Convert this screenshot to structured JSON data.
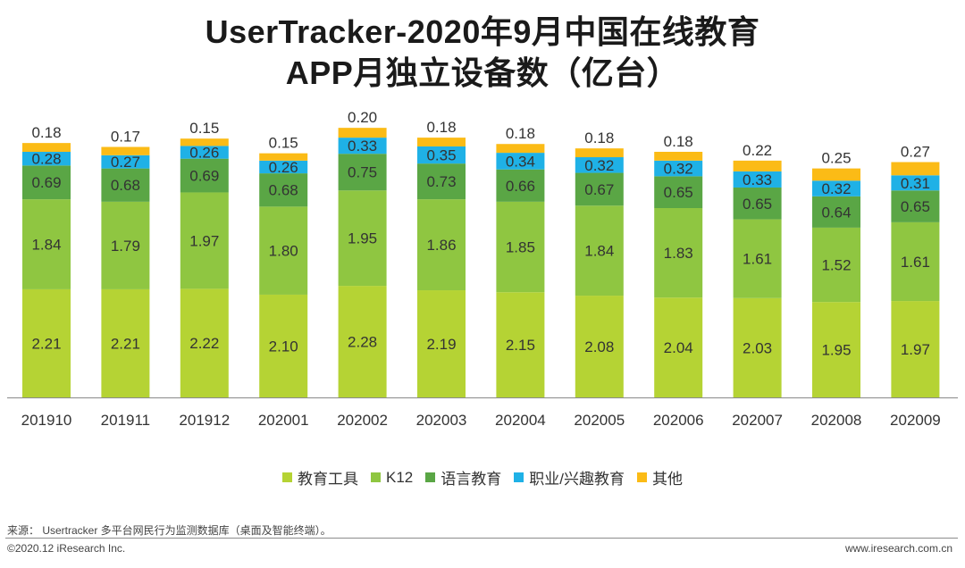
{
  "title_line1": "UserTracker-2020年9月中国在线教育",
  "title_line2": "APP月独立设备数（亿台）",
  "chart_data": {
    "type": "bar",
    "stacked": true,
    "title": "UserTracker-2020年9月中国在线教育 APP月独立设备数（亿台）",
    "categories": [
      "201910",
      "201911",
      "201912",
      "202001",
      "202002",
      "202003",
      "202004",
      "202005",
      "202006",
      "202007",
      "202008",
      "202009"
    ],
    "series": [
      {
        "name": "教育工具",
        "color": "#b5d334",
        "label_color": "#333333",
        "values": [
          2.21,
          2.21,
          2.22,
          2.1,
          2.28,
          2.19,
          2.15,
          2.08,
          2.04,
          2.03,
          1.95,
          1.97
        ]
      },
      {
        "name": "K12",
        "color": "#8fc641",
        "label_color": "#333333",
        "values": [
          1.84,
          1.79,
          1.97,
          1.8,
          1.95,
          1.86,
          1.85,
          1.84,
          1.83,
          1.61,
          1.52,
          1.61
        ]
      },
      {
        "name": "语言教育",
        "color": "#5aa645",
        "label_color": "#333333",
        "values": [
          0.69,
          0.68,
          0.69,
          0.68,
          0.75,
          0.73,
          0.66,
          0.67,
          0.65,
          0.65,
          0.64,
          0.65
        ]
      },
      {
        "name": "职业/兴趣教育",
        "color": "#1fb1e6",
        "label_color": "#333333",
        "values": [
          0.28,
          0.27,
          0.26,
          0.26,
          0.33,
          0.35,
          0.34,
          0.32,
          0.32,
          0.33,
          0.32,
          0.31
        ]
      },
      {
        "name": "其他",
        "color": "#fbbb16",
        "label_color": "#333333",
        "values": [
          0.18,
          0.17,
          0.15,
          0.15,
          0.2,
          0.18,
          0.18,
          0.18,
          0.18,
          0.22,
          0.25,
          0.27
        ]
      }
    ],
    "ylim": [
      0,
      5.75
    ],
    "xlabel": "",
    "ylabel": "",
    "legend_position": "bottom"
  },
  "source_text": "来源： Usertracker 多平台网民行为监测数据库（桌面及智能终端）。",
  "footer_left": "©2020.12 iResearch Inc.",
  "footer_right": "www.iresearch.com.cn"
}
